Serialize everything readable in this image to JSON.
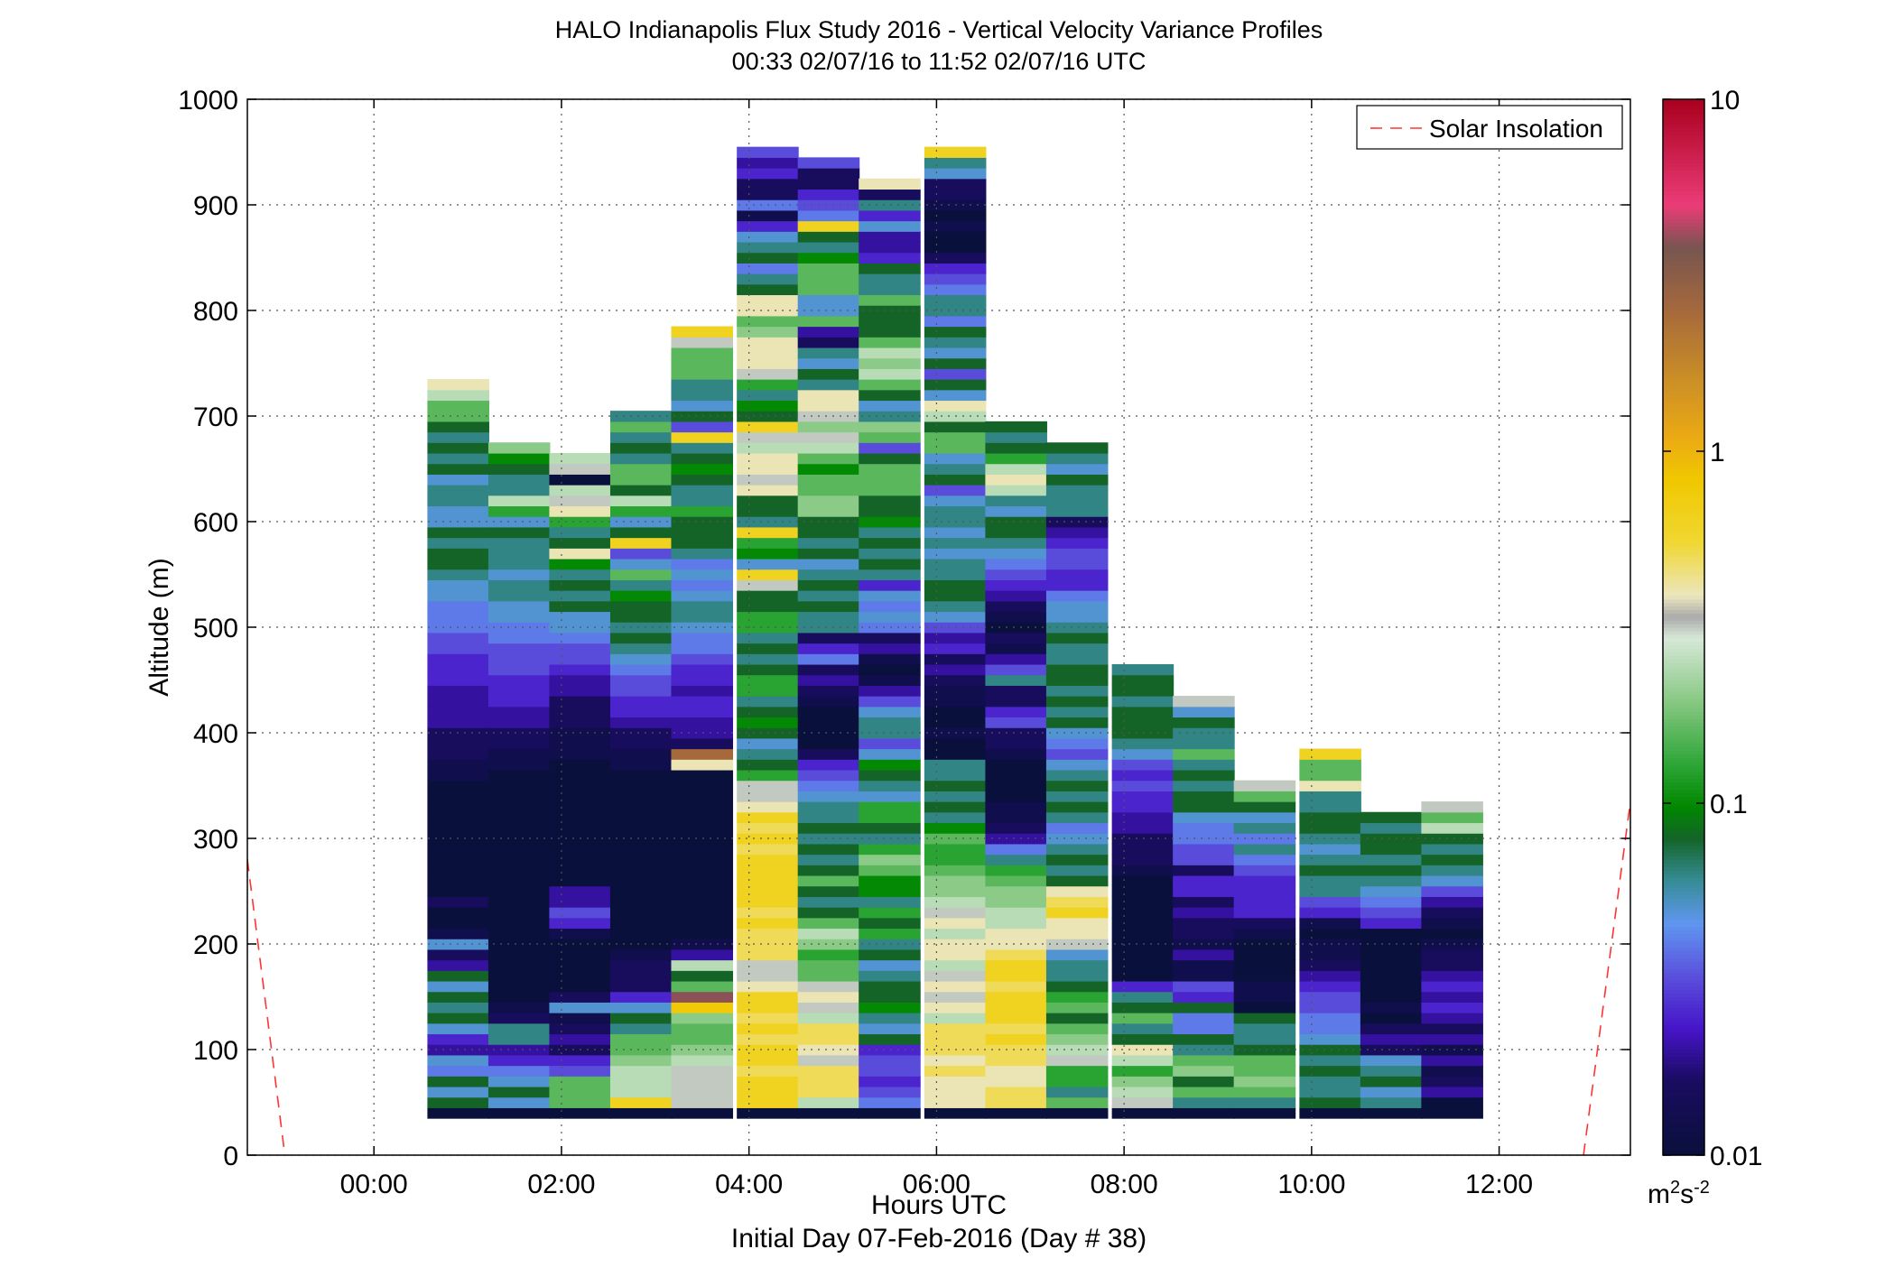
{
  "chart_data": {
    "type": "heatmap",
    "title": "HALO Indianapolis Flux Study 2016 - Vertical Velocity Variance Profiles",
    "subtitle": "00:33 02/07/16 to 11:52 02/07/16  UTC",
    "xlabel": "Hours UTC",
    "xlabel2": "Initial Day 07-Feb-2016 (Day # 38)",
    "ylabel": "Altitude (m)",
    "xlim": [
      -1.35,
      13.4
    ],
    "ylim": [
      0,
      1000
    ],
    "x_ticks": [
      0,
      2,
      4,
      6,
      8,
      10,
      12
    ],
    "x_tick_labels": [
      "00:00",
      "02:00",
      "04:00",
      "06:00",
      "08:00",
      "10:00",
      "12:00"
    ],
    "y_ticks": [
      0,
      100,
      200,
      300,
      400,
      500,
      600,
      700,
      800,
      900,
      1000
    ],
    "y_tick_labels": [
      "0",
      "100",
      "200",
      "300",
      "400",
      "500",
      "600",
      "700",
      "800",
      "900",
      "1000"
    ],
    "grid": true,
    "colorbar": {
      "scale": "log",
      "min": 0.01,
      "max": 10,
      "tick_values": [
        0.01,
        0.1,
        1,
        10
      ],
      "tick_labels": [
        "0.01",
        "0.1",
        "1",
        "10"
      ],
      "units_base": "m",
      "units_exp1": "2",
      "units_mid": "s",
      "units_exp2": "-2"
    },
    "legend": {
      "position": "top-right",
      "entries": [
        {
          "name": "Solar Insolation",
          "style": "dashed",
          "color": "#ff3333"
        }
      ]
    },
    "profile_times": [
      0.9,
      1.55,
      2.2,
      2.85,
      3.5,
      4.2,
      4.85,
      5.5,
      6.2,
      6.85,
      7.5,
      8.2,
      8.85,
      9.5,
      10.2,
      10.85,
      11.5
    ],
    "profile_width_hours": 0.66,
    "altitude_bins_m": [
      40,
      50,
      60,
      70,
      80,
      90,
      100,
      110,
      120,
      130,
      140,
      150,
      160,
      170,
      180,
      190,
      200,
      210,
      220,
      230,
      240,
      250,
      260,
      270,
      280,
      290,
      300,
      310,
      320,
      330,
      340,
      350,
      360,
      370,
      380,
      390,
      400,
      410,
      420,
      430,
      440,
      450,
      460,
      470,
      480,
      490,
      500,
      510,
      520,
      530,
      540,
      550,
      560,
      570,
      580,
      590,
      600,
      610,
      620,
      630,
      640,
      650,
      660,
      670,
      680,
      690,
      700,
      710,
      720,
      730,
      740,
      750,
      760,
      770,
      780,
      790,
      800,
      810,
      820,
      830,
      840,
      850,
      860,
      870,
      880,
      890,
      900,
      910,
      920,
      930,
      940,
      950
    ],
    "profile_tops_m": [
      725,
      670,
      685,
      710,
      775,
      925,
      925,
      900,
      960,
      675,
      650,
      460,
      470,
      400,
      420,
      325,
      350
    ],
    "variance_profiles_log10": [
      [
        -2,
        -1.1,
        -1.3,
        -1.1,
        -1.4,
        -1.3,
        -1.7,
        -1.6,
        -1.3,
        -1.1,
        -1.2,
        -1.1,
        -1.3,
        -1.1,
        -1.7,
        -1.8,
        -1.3,
        -1.9,
        -2,
        -2,
        -1.8,
        -2,
        -2,
        -2,
        -2,
        -2,
        -2,
        -2,
        -2,
        -2,
        -2,
        -2,
        -1.9,
        -1.9,
        -1.8,
        -1.8,
        -1.8,
        -1.7,
        -1.7,
        -1.7,
        -1.7,
        -1.6,
        -1.6,
        -1.6,
        -1.5,
        -1.5,
        -1.4,
        -1.4,
        -1.4,
        -1.3,
        -1.3,
        -1.2,
        -1.1,
        -1.1,
        -1.2,
        -1.1,
        -1.3,
        -1.3,
        -1.2,
        -1.2,
        -1.3,
        -1.1,
        -1.2,
        -1.1,
        -1.2,
        -1.1,
        -0.8,
        -0.8,
        -0.6,
        -0.4
      ],
      [
        -2,
        -1.3,
        -1.1,
        -1.3,
        -1.4,
        -1.6,
        -1.7,
        -1.2,
        -1.2,
        -1.8,
        -1.9,
        -2,
        -2,
        -2,
        -2,
        -2,
        -2,
        -2,
        -2,
        -2,
        -2,
        -2,
        -2,
        -2,
        -2,
        -2,
        -2,
        -2,
        -2,
        -2,
        -2,
        -2,
        -2,
        -1.9,
        -1.9,
        -1.8,
        -1.8,
        -1.7,
        -1.7,
        -1.6,
        -1.6,
        -1.6,
        -1.5,
        -1.5,
        -1.5,
        -1.4,
        -1.4,
        -1.3,
        -1.3,
        -1.2,
        -1.2,
        -1.3,
        -1.2,
        -1.2,
        -1.2,
        -1.1,
        -1.3,
        -0.9,
        -0.6,
        -1.2,
        -1.2,
        -1.1,
        -1,
        -0.7
      ],
      [
        -2,
        -0.8,
        -0.8,
        -0.8,
        -1.5,
        -1.6,
        -1.8,
        -1.7,
        -1.8,
        -1.9,
        -1.3,
        -1.8,
        -2,
        -2,
        -2,
        -2,
        -2,
        -1.9,
        -1.6,
        -1.5,
        -1.7,
        -1.7,
        -2,
        -2,
        -2,
        -2,
        -2,
        -2,
        -2,
        -2,
        -2,
        -2,
        -2,
        -2,
        -1.9,
        -1.9,
        -1.9,
        -1.8,
        -1.8,
        -1.8,
        -1.7,
        -1.7,
        -1.6,
        -1.5,
        -1.5,
        -1.4,
        -1.3,
        -1.3,
        -1.1,
        -1.2,
        -1.1,
        -1.2,
        -1,
        -0.4,
        -1.1,
        -1.2,
        -0.9,
        -0.4,
        -0.5,
        -0.6,
        -2,
        -0.5,
        -0.6
      ],
      [
        -2,
        -0.2,
        -0.6,
        -0.6,
        -0.6,
        -0.7,
        -0.8,
        -0.8,
        -1.2,
        -1.1,
        -1.3,
        -1.6,
        -1.8,
        -1.8,
        -1.8,
        -1.9,
        -2,
        -2,
        -2,
        -2,
        -2,
        -2,
        -2,
        -2,
        -2,
        -2,
        -2,
        -2,
        -2,
        -2,
        -2,
        -2,
        -2,
        -1.9,
        -1.9,
        -1.8,
        -1.8,
        -1.7,
        -1.6,
        -1.6,
        -1.5,
        -1.5,
        -1.4,
        -1.3,
        -1.2,
        -1.1,
        -1.2,
        -1.1,
        -1.1,
        -1,
        -1.2,
        -0.8,
        -1.3,
        -1.5,
        -0.2,
        -1.1,
        -1.3,
        -0.9,
        -0.6,
        -1.1,
        -0.8,
        -0.8,
        -1.2,
        -1.1,
        -1.2,
        -0.8,
        -1.2
      ],
      [
        -2,
        -0.5,
        -0.5,
        -0.5,
        -0.5,
        -0.6,
        -0.7,
        -0.8,
        -0.8,
        -0.7,
        -0.1,
        0.6,
        -0.8,
        -1.1,
        -0.6,
        -1.7,
        -1.9,
        -2,
        -2,
        -2,
        -2,
        -2,
        -2,
        -2,
        -2,
        -2,
        -2,
        -2,
        -2,
        -2,
        -2,
        -2,
        -2,
        -0.4,
        0.4,
        -1.8,
        -1.7,
        -1.7,
        -1.6,
        -1.6,
        -1.7,
        -1.6,
        -1.6,
        -1.5,
        -1.4,
        -1.4,
        -1.3,
        -1.2,
        -1.2,
        -1.3,
        -1.4,
        -1.3,
        -1.4,
        -1.2,
        -1.1,
        -1.1,
        -1.1,
        -0.9,
        -1.2,
        -1.2,
        -1.1,
        -1,
        -1.1,
        -1.2,
        -0.2,
        -1.5,
        -1.1,
        -1.3,
        -1.2,
        -1.2,
        -0.8,
        -0.8,
        -0.8,
        -0.5,
        -0.2
      ],
      [
        -2,
        -0.2,
        -0.2,
        -0.2,
        -0.3,
        -0.2,
        -0.2,
        -0.3,
        -0.2,
        -0.3,
        -0.2,
        -0.2,
        -0.4,
        -0.5,
        -0.5,
        -0.3,
        -0.3,
        -0.3,
        -0.2,
        -0.3,
        -0.2,
        -0.2,
        -0.2,
        -0.2,
        -0.2,
        -0.3,
        -0.2,
        -0.3,
        -0.2,
        -0.4,
        -0.5,
        -0.5,
        -0.9,
        -1.1,
        -1.2,
        -1.3,
        -1.1,
        -1,
        -1.1,
        -1.2,
        -0.9,
        -0.9,
        -1.1,
        -1.2,
        -1.1,
        -1.2,
        -0.9,
        -0.9,
        -1.1,
        -1.1,
        -0.5,
        -0.2,
        -1.3,
        -1,
        -0.9,
        -0.2,
        -1.2,
        -1.1,
        -1.1,
        -0.4,
        -0.5,
        -0.4,
        -0.4,
        -0.6,
        -0.5,
        -0.2,
        -1.1,
        -1,
        -1.2,
        -0.9,
        -0.5,
        -0.4,
        -0.4,
        -0.4,
        -0.7,
        -0.8,
        -0.4,
        -0.4,
        -1.1,
        -1.2,
        -1.4,
        -1.1,
        -1.2,
        -1.3,
        -1.6,
        -1.9,
        -1.4,
        -1.8,
        -1.8,
        -1.6,
        -1.7,
        -1.5
      ],
      [
        -2,
        -0.6,
        -0.3,
        -0.3,
        -0.3,
        -0.5,
        -0.4,
        -0.3,
        -0.3,
        -0.6,
        -0.5,
        -0.4,
        -0.5,
        -0.8,
        -0.8,
        -0.9,
        -0.7,
        -0.6,
        -0.8,
        -1.1,
        -1.2,
        -1.1,
        -0.8,
        -1.1,
        -1.2,
        -1.1,
        -1.2,
        -1.1,
        -1.2,
        -1.2,
        -1.3,
        -1.4,
        -1.5,
        -1.6,
        -1.8,
        -2,
        -2,
        -2,
        -2,
        -1.9,
        -1.8,
        -1.7,
        -1.8,
        -1.4,
        -1.6,
        -1.8,
        -1.2,
        -1.2,
        -1.1,
        -1.2,
        -1.1,
        -1.2,
        -1.3,
        -1.1,
        -1.2,
        -1.1,
        -1.1,
        -0.7,
        -0.7,
        -0.8,
        -0.8,
        -1,
        -0.8,
        -0.6,
        -0.5,
        -0.7,
        -0.5,
        -0.4,
        -0.4,
        -1.2,
        -1.1,
        -1.3,
        -1.2,
        -1.8,
        -1.7,
        -0.8,
        -1.3,
        -1.3,
        -0.8,
        -0.8,
        -0.8,
        -1,
        -1.2,
        -1.1,
        -0.2,
        -1.4,
        -1.5,
        -1.6,
        -1.8,
        -1.8,
        -1.5
      ],
      [
        -2,
        -1.4,
        -1.5,
        -1.6,
        -1.5,
        -1.5,
        -1.6,
        -1.1,
        -1.3,
        -1.2,
        -1,
        -1.1,
        -1.1,
        -1.2,
        -1.3,
        -1.1,
        -1.2,
        -0.9,
        -1.1,
        -0.9,
        -1.2,
        -1,
        -1,
        -0.8,
        -0.7,
        -0.9,
        -1.2,
        -1.1,
        -0.9,
        -0.9,
        -1.3,
        -1.2,
        -1.1,
        -1,
        -1.3,
        -1.5,
        -1.2,
        -1.2,
        -1.3,
        -1.5,
        -1.7,
        -1.9,
        -2,
        -1.9,
        -1.7,
        -1.8,
        -1.4,
        -1.3,
        -1.4,
        -1.3,
        -1.6,
        -1.2,
        -1.1,
        -1.2,
        -1.1,
        -1.2,
        -1,
        -1.1,
        -1.1,
        -0.8,
        -0.8,
        -0.8,
        -1.1,
        -1.5,
        -0.8,
        -0.7,
        -1.2,
        -1.3,
        -1.1,
        -0.8,
        -0.6,
        -0.7,
        -0.6,
        -0.8,
        -1.1,
        -1.1,
        -1.1,
        -0.8,
        -1.2,
        -1.2,
        -1.1,
        -1.6,
        -1.7,
        -1.7,
        -1.3,
        -1.6,
        -1.2,
        -1.8,
        -0.4
      ],
      [
        -2,
        -0.4,
        -0.4,
        -0.4,
        -0.3,
        -0.4,
        -0.3,
        -0.3,
        -0.3,
        -0.6,
        -0.4,
        -0.5,
        -0.4,
        -0.5,
        -0.6,
        -0.4,
        -0.4,
        -0.6,
        -0.4,
        -0.5,
        -0.6,
        -0.7,
        -0.7,
        -0.8,
        -0.9,
        -0.9,
        -0.8,
        -1,
        -1.2,
        -1.1,
        -1.2,
        -1.1,
        -1.2,
        -1.2,
        -2,
        -2,
        -1.9,
        -2,
        -2,
        -1.9,
        -1.9,
        -1.8,
        -1.7,
        -1.8,
        -1.6,
        -1.7,
        -1.5,
        -1.3,
        -1.2,
        -1.1,
        -1.1,
        -1.2,
        -1.2,
        -1.3,
        -1.2,
        -1.3,
        -1.2,
        -1.2,
        -1.3,
        -1.5,
        -1.1,
        -1.2,
        -1.3,
        -0.8,
        -0.8,
        -1.1,
        -0.6,
        -0.4,
        -1.3,
        -1.1,
        -1.5,
        -1.1,
        -1.3,
        -1.2,
        -1.1,
        -1.4,
        -1.2,
        -1.2,
        -1.4,
        -1.5,
        -1.6,
        -1.8,
        -2,
        -2,
        -1.9,
        -2,
        -1.9,
        -1.8,
        -1.8,
        -1.3,
        -1.2,
        -0.2
      ],
      [
        -2,
        -0.3,
        -0.3,
        -0.4,
        -0.4,
        -0.3,
        -0.3,
        -0.2,
        -0.3,
        -0.2,
        -0.2,
        -0.2,
        -0.3,
        -0.2,
        -0.2,
        -0.3,
        -0.4,
        -0.4,
        -0.6,
        -0.6,
        -0.7,
        -0.7,
        -0.8,
        -0.9,
        -1.2,
        -1.4,
        -1.7,
        -1.8,
        -1.9,
        -1.9,
        -2,
        -2,
        -2,
        -2,
        -1.9,
        -1.8,
        -1.8,
        -1.5,
        -1.6,
        -1.8,
        -1.8,
        -1.2,
        -1.5,
        -1.7,
        -1.9,
        -1.8,
        -2,
        -1.9,
        -1.8,
        -1.7,
        -1.6,
        -1.5,
        -1.4,
        -1.3,
        -1.2,
        -1.1,
        -1.1,
        -1.3,
        -1.2,
        -0.6,
        -0.4,
        -0.6,
        -0.9,
        -1.1,
        -1.2,
        -1.1
      ],
      [
        -2,
        -0.8,
        -1.2,
        -0.9,
        -0.9,
        -0.5,
        -0.6,
        -0.7,
        -0.8,
        -1.1,
        -0.8,
        -0.9,
        -1.1,
        -1.2,
        -1.2,
        -1.3,
        -0.5,
        -0.4,
        -0.4,
        -0.2,
        -0.3,
        -0.4,
        -1.1,
        -1.2,
        -1.1,
        -1.2,
        -1.3,
        -1.4,
        -1.2,
        -1.1,
        -1.2,
        -1.1,
        -1.2,
        -1.3,
        -1.5,
        -1.4,
        -1.3,
        -1.1,
        -1.2,
        -1.1,
        -1.2,
        -1.1,
        -1.1,
        -1.2,
        -1.2,
        -1.1,
        -1.2,
        -1.3,
        -1.3,
        -1.4,
        -1.6,
        -1.6,
        -1.5,
        -1.5,
        -1.6,
        -1.7,
        -1.8,
        -1.2,
        -1.2,
        -1.2,
        -1.1,
        -1.3,
        -1.2,
        -1.1
      ],
      [
        -2,
        -0.5,
        -0.6,
        -0.7,
        -0.9,
        -0.6,
        -0.4,
        -1.1,
        -1.2,
        -0.8,
        -1.1,
        -1.2,
        -1.6,
        -2,
        -2,
        -2,
        -2,
        -2,
        -2,
        -2,
        -2,
        -2,
        -2,
        -1.9,
        -1.8,
        -1.8,
        -1.8,
        -1.7,
        -1.7,
        -1.6,
        -1.6,
        -1.5,
        -1.6,
        -1.5,
        -1.3,
        -1.2,
        -1.1,
        -1.1,
        -1.1,
        -1.2,
        -1.1,
        -1.1,
        -1.2
      ],
      [
        -2,
        -1.2,
        -0.8,
        -1.1,
        -0.7,
        -0.8,
        -1.2,
        -1.1,
        -1.4,
        -1.4,
        -1.1,
        -1.6,
        -1.5,
        -1.9,
        -1.9,
        -1.7,
        -1.9,
        -1.8,
        -1.8,
        -1.7,
        -1.8,
        -1.6,
        -1.6,
        -1.8,
        -1.5,
        -1.5,
        -1.4,
        -1.4,
        -1.3,
        -1.1,
        -1.1,
        -1.2,
        -1.1,
        -1.2,
        -0.8,
        -1.2,
        -1.2,
        -1.1,
        -1.3,
        -0.5
      ],
      [
        -2,
        -1.2,
        -0.8,
        -0.7,
        -0.8,
        -0.8,
        -1.1,
        -1.2,
        -1.2,
        -1.1,
        -2,
        -1.9,
        -1.9,
        -2,
        -2,
        -2,
        -2,
        -1.9,
        -1.8,
        -1.6,
        -1.6,
        -1.6,
        -1.6,
        -1.5,
        -1.4,
        -1.2,
        -1.4,
        -1.2,
        -1.3,
        -1.1,
        -0.8,
        -0.5
      ],
      [
        -2,
        -1.1,
        -1.2,
        -1.2,
        -1.1,
        -1.2,
        -1.1,
        -1.3,
        -1.4,
        -1.4,
        -1.5,
        -1.5,
        -1.6,
        -1.7,
        -1.8,
        -1.9,
        -1.9,
        -2,
        -1.9,
        -1.6,
        -1.5,
        -1.2,
        -1.2,
        -1.1,
        -1.2,
        -1.3,
        -1.2,
        -1.1,
        -1.1,
        -1.2,
        -1.2,
        -0.4,
        -0.8,
        -0.8,
        -0.2
      ],
      [
        -2,
        -1.2,
        -1.3,
        -1.1,
        -1.2,
        -1.3,
        -1.8,
        -1.7,
        -1.8,
        -2,
        -1.9,
        -2,
        -2,
        -2,
        -2,
        -2,
        -2,
        -2,
        -1.6,
        -1.5,
        -1.4,
        -1.3,
        -1.2,
        -1.1,
        -1.2,
        -1.1,
        -1.1,
        -1.2,
        -1.1
      ],
      [
        -2,
        -2,
        -1.7,
        -1.8,
        -1.9,
        -1.7,
        -1.9,
        -1.7,
        -1.8,
        -1.7,
        -1.6,
        -1.7,
        -1.6,
        -1.7,
        -1.8,
        -1.8,
        -1.9,
        -2,
        -1.9,
        -1.8,
        -1.7,
        -1.5,
        -1.3,
        -1.2,
        -1.1,
        -1.2,
        -1.1,
        -0.6,
        -0.8,
        -0.5
      ]
    ],
    "solar_insolation_segments": [
      {
        "x": [
          -1.35,
          -0.95
        ],
        "y": [
          280,
          0
        ]
      },
      {
        "x": [
          12.9,
          13.4
        ],
        "y": [
          0,
          335
        ]
      }
    ]
  }
}
